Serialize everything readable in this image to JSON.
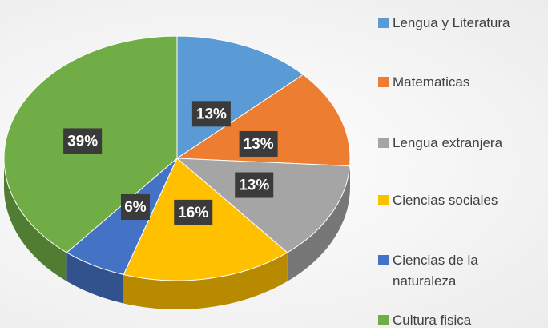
{
  "chart_data": {
    "type": "pie3d",
    "categories": [
      "Lengua y Literatura",
      "Matematicas",
      "Lengua extranjera",
      "Ciencias sociales",
      "Ciencias de la naturaleza",
      "Cultura fisica"
    ],
    "values": [
      13,
      13,
      13,
      16,
      6,
      39
    ],
    "value_labels": [
      "13%",
      "13%",
      "13%",
      "16%",
      "6%",
      "39%"
    ],
    "colors": [
      "#5b9bd5",
      "#ed7d31",
      "#a5a5a5",
      "#ffc000",
      "#4472c4",
      "#70ad47"
    ]
  }
}
